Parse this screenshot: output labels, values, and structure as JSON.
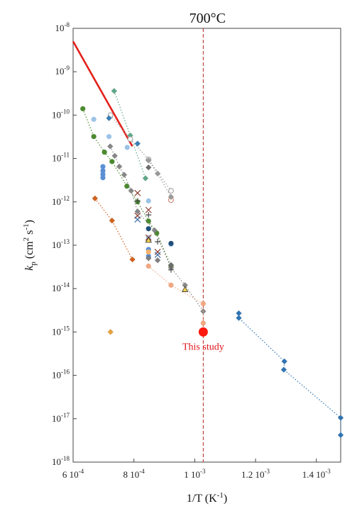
{
  "chart_data": {
    "type": "scatter",
    "title": "",
    "xlabel": {
      "main": "1/T (K",
      "sup": "-1",
      "end": ")"
    },
    "ylabel": {
      "k": "k",
      "sub": "p",
      "mid": " (cm",
      "sup1": "2",
      "mid2": " s",
      "sup2": "-1",
      "end": ")"
    },
    "x_scale": "linear",
    "y_scale": "log",
    "xlim": [
      0.0006,
      0.00148
    ],
    "ylim": [
      1e-18,
      1e-08
    ],
    "grid": false,
    "xticks": [
      {
        "value": 0.0006,
        "mant": "6 10",
        "exp": "-4"
      },
      {
        "value": 0.0008,
        "mant": "8 10",
        "exp": "-4"
      },
      {
        "value": 0.001,
        "mant": "1 10",
        "exp": "-3"
      },
      {
        "value": 0.0012,
        "mant": "1.2 10",
        "exp": "-3"
      },
      {
        "value": 0.0014,
        "mant": "1.4 10",
        "exp": "-3"
      }
    ],
    "yticks": [
      {
        "value": 1e-08,
        "exp": "-8"
      },
      {
        "value": 1e-09,
        "exp": "-9"
      },
      {
        "value": 1e-10,
        "exp": "-10"
      },
      {
        "value": 1e-11,
        "exp": "-11"
      },
      {
        "value": 1e-12,
        "exp": "-12"
      },
      {
        "value": 1e-13,
        "exp": "-13"
      },
      {
        "value": 1e-14,
        "exp": "-14"
      },
      {
        "value": 1e-15,
        "exp": "-15"
      },
      {
        "value": 1e-16,
        "exp": "-16"
      },
      {
        "value": 1e-17,
        "exp": "-17"
      },
      {
        "value": 1e-18,
        "exp": "-18"
      }
    ],
    "ytick_base": "10",
    "reference_line": {
      "x": 0.001028,
      "label": "700°C",
      "color": "#b0281f"
    },
    "highlight": {
      "x": 0.001028,
      "y": 1e-15,
      "label": "This study",
      "color": "#ff1a10"
    },
    "red_line": {
      "x": [
        0.0006,
        0.000795
      ],
      "y": [
        5e-09,
        1.9e-11
      ],
      "color": "#e3211c"
    },
    "series": [
      {
        "marker": "diamond",
        "color": "#2f75b5",
        "line": true,
        "points": [
          [
            0.001145,
            2.7e-15
          ],
          [
            0.001145,
            2.1e-15
          ],
          [
            0.001295,
            2.1e-16
          ],
          [
            0.001293,
            1.35e-16
          ],
          [
            0.00148,
            1.05e-17
          ],
          [
            0.00148,
            4.2e-18
          ]
        ]
      },
      {
        "marker": "diamond",
        "color": "#d4621b",
        "line": true,
        "points": [
          [
            0.000672,
            1.2e-12
          ],
          [
            0.000728,
            3.7e-13
          ],
          [
            0.000795,
            4.7e-14
          ]
        ]
      },
      {
        "marker": "diamond",
        "color": "#e8a33d",
        "line": false,
        "points": [
          [
            0.000723,
            1e-15
          ]
        ]
      },
      {
        "marker": "diamond",
        "color": "#5ea88a",
        "line": true,
        "points": [
          [
            0.000735,
            3.6e-10
          ],
          [
            0.000788,
            3.4e-11
          ],
          [
            0.000838,
            3.5e-12
          ]
        ]
      },
      {
        "marker": "circle",
        "color": "#4c8a2f",
        "line": true,
        "points": [
          [
            0.000632,
            1.4e-10
          ],
          [
            0.000668,
            3.2e-11
          ],
          [
            0.000703,
            1.4e-11
          ],
          [
            0.000728,
            8.5e-12
          ],
          [
            0.000777,
            2.3e-12
          ],
          [
            0.000812,
            1e-12
          ],
          [
            0.000848,
            3.6e-13
          ],
          [
            0.000875,
            1.9e-13
          ],
          [
            0.000922,
            3.3e-14
          ]
        ]
      },
      {
        "marker": "diamond",
        "color": "#868686",
        "line": true,
        "points": [
          [
            0.000722,
            1.9e-11
          ],
          [
            0.000737,
            1.15e-11
          ],
          [
            0.000752,
            6.5e-12
          ],
          [
            0.000768,
            4.2e-12
          ],
          [
            0.000791,
            1.8e-12
          ],
          [
            0.000812,
            6e-13
          ],
          [
            0.000868,
            2.2e-13
          ],
          [
            0.000922,
            3e-14
          ],
          [
            0.000968,
            1.2e-14
          ],
          [
            0.001028,
            3e-15
          ]
        ]
      },
      {
        "marker": "circle",
        "color": "#f0a882",
        "line": true,
        "points": [
          [
            0.000848,
            3.3e-14
          ],
          [
            0.000922,
            1.2e-14
          ],
          [
            0.001028,
            4.5e-15
          ],
          [
            0.001028,
            1.6e-15
          ]
        ]
      },
      {
        "marker": "circle",
        "color": "#9dc3e6",
        "line": false,
        "points": [
          [
            0.000668,
            8e-11
          ],
          [
            0.000718,
            3.2e-11
          ],
          [
            0.000778,
            1.8e-11
          ],
          [
            0.000848,
            1.05e-12
          ],
          [
            0.000848,
            1.5e-13
          ],
          [
            0.000922,
            1.05e-13
          ]
        ]
      },
      {
        "marker": "circle",
        "color": "#5b8fd4",
        "line": false,
        "points": [
          [
            0.000698,
            6.5e-12
          ],
          [
            0.000698,
            5.2e-12
          ],
          [
            0.000698,
            4.3e-12
          ],
          [
            0.000698,
            3.6e-12
          ],
          [
            0.000848,
            8e-14
          ],
          [
            0.000848,
            5.6e-14
          ]
        ]
      },
      {
        "marker": "circle",
        "color": "#1f4e79",
        "line": false,
        "points": [
          [
            0.000848,
            2.4e-13
          ],
          [
            0.000922,
            1.1e-13
          ]
        ]
      },
      {
        "marker": "circle-open",
        "color": "#a0a0a0",
        "line": true,
        "points": [
          [
            0.000723,
            1e-10
          ],
          [
            0.000788,
            2.8e-11
          ],
          [
            0.000848,
            9.5e-12
          ],
          [
            0.000922,
            1.8e-12
          ]
        ]
      },
      {
        "marker": "circle-open",
        "color": "#c87f6a",
        "line": false,
        "points": [
          [
            0.000922,
            1.1e-12
          ]
        ]
      },
      {
        "marker": "diamond",
        "color": "#9a9a9a",
        "line": true,
        "points": [
          [
            0.000848,
            9e-12
          ],
          [
            0.000878,
            4.5e-12
          ],
          [
            0.000922,
            1.3e-12
          ]
        ]
      },
      {
        "marker": "diamond",
        "color": "#3a7fb5",
        "line": false,
        "points": [
          [
            0.000718,
            8.5e-11
          ],
          [
            0.000812,
            2.2e-11
          ]
        ]
      },
      {
        "marker": "diamond",
        "color": "#6e6e6e",
        "line": false,
        "points": [
          [
            0.000848,
            6.2e-12
          ],
          [
            0.000922,
            3.5e-14
          ]
        ]
      },
      {
        "marker": "cross",
        "color": "#8b3a2a",
        "line": false,
        "points": [
          [
            0.000812,
            1.6e-12
          ],
          [
            0.000848,
            6.5e-13
          ],
          [
            0.000812,
            4.8e-13
          ],
          [
            0.000848,
            1.5e-13
          ],
          [
            0.000878,
            7e-14
          ]
        ]
      },
      {
        "marker": "cross",
        "color": "#3a6ea5",
        "line": false,
        "points": [
          [
            0.000812,
            3.9e-13
          ],
          [
            0.000878,
            6e-14
          ]
        ]
      },
      {
        "marker": "plus",
        "color": "#4a4a4a",
        "line": false,
        "points": [
          [
            0.000812,
            1.05e-12
          ],
          [
            0.000848,
            5e-13
          ],
          [
            0.000878,
            1.2e-13
          ],
          [
            0.000922,
            2.7e-14
          ]
        ]
      },
      {
        "marker": "triangle",
        "color": "#f3d24a",
        "line": false,
        "points": [
          [
            0.000848,
            1.3e-13
          ],
          [
            0.000968,
            9.5e-15
          ]
        ]
      },
      {
        "marker": "circle",
        "color": "#f6b26b",
        "line": false,
        "points": [
          [
            0.000848,
            7e-14
          ]
        ]
      },
      {
        "marker": "diamond",
        "color": "#7f7f7f",
        "line": false,
        "points": [
          [
            0.000848,
            5e-14
          ],
          [
            0.000878,
            4.5e-14
          ]
        ]
      }
    ]
  }
}
